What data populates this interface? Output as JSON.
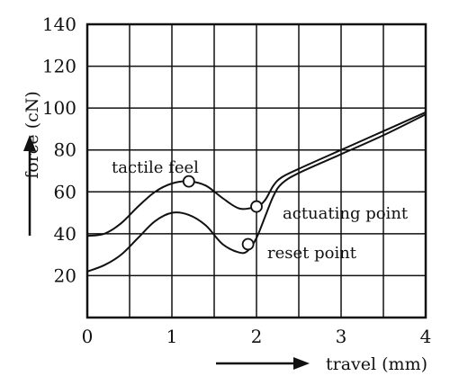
{
  "chart_data": {
    "type": "line",
    "xlabel": "travel (mm)",
    "ylabel": "force (cN)",
    "xlim": [
      0,
      4
    ],
    "ylim": [
      0,
      140
    ],
    "x_ticks": [
      0,
      1,
      2,
      3,
      4
    ],
    "y_ticks": [
      20,
      40,
      60,
      80,
      100,
      120,
      140
    ],
    "x_grid_step": 0.5,
    "y_grid_step": 20,
    "grid": true,
    "series": [
      {
        "x": [
          0,
          0.2,
          0.4,
          0.6,
          0.8,
          1.0,
          1.2,
          1.4,
          1.6,
          1.8,
          2.0,
          2.1,
          2.2,
          2.3,
          2.5,
          3.0,
          3.5,
          4.0
        ],
        "y": [
          39,
          40,
          45,
          53,
          60,
          64,
          65,
          63,
          57,
          52,
          53,
          56,
          63,
          67,
          71,
          80,
          89,
          98
        ]
      },
      {
        "x": [
          0,
          0.2,
          0.4,
          0.6,
          0.8,
          1.0,
          1.2,
          1.4,
          1.6,
          1.8,
          1.9,
          2.0,
          2.1,
          2.2,
          2.3,
          2.5,
          3.0,
          3.5,
          4.0
        ],
        "y": [
          22,
          25,
          30,
          38,
          46,
          50,
          49,
          44,
          35,
          31,
          32,
          38,
          48,
          58,
          64,
          69,
          78,
          87,
          97
        ]
      }
    ],
    "annotations": [
      {
        "text": "tactile feel",
        "x": 1.2,
        "y": 65
      },
      {
        "text": "actuating point",
        "x": 2.0,
        "y": 53
      },
      {
        "text": "reset point",
        "x": 1.9,
        "y": 35
      }
    ]
  }
}
